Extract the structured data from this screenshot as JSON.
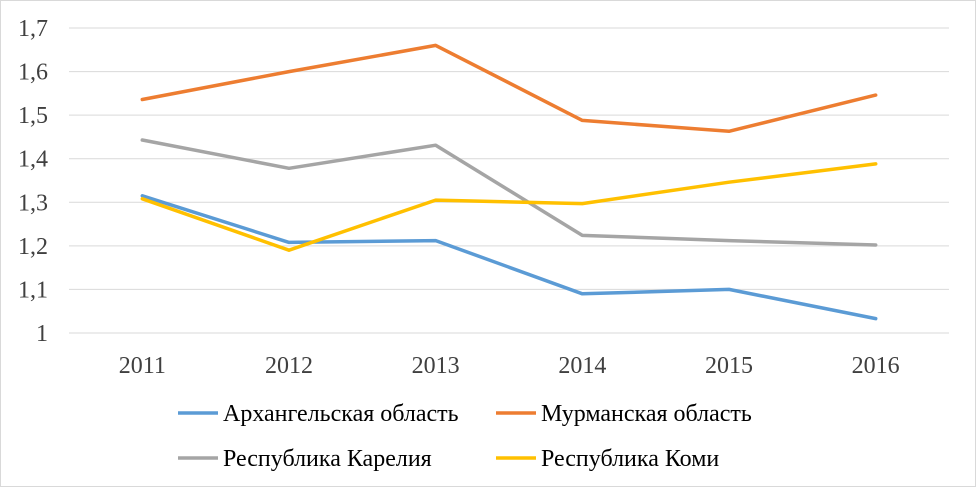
{
  "chart_data": {
    "type": "line",
    "title": "",
    "xlabel": "",
    "ylabel": "",
    "categories": [
      "2011",
      "2012",
      "2013",
      "2014",
      "2015",
      "2016"
    ],
    "ylim": [
      1,
      1.7
    ],
    "yticks": [
      "1",
      "1,1",
      "1,2",
      "1,3",
      "1,4",
      "1,5",
      "1,6",
      "1,7"
    ],
    "grid": "horizontal",
    "legend_position": "bottom",
    "series": [
      {
        "name": "Архангельская область",
        "color": "#5b9bd5",
        "values": [
          1.315,
          1.208,
          1.212,
          1.09,
          1.1,
          1.033
        ]
      },
      {
        "name": "Мурманская область",
        "color": "#ed7d31",
        "values": [
          1.536,
          1.6,
          1.66,
          1.488,
          1.463,
          1.546
        ]
      },
      {
        "name": "Республика Карелия",
        "color": "#a5a5a5",
        "values": [
          1.443,
          1.378,
          1.431,
          1.224,
          1.212,
          1.202
        ]
      },
      {
        "name": "Республика Коми",
        "color": "#ffc000",
        "values": [
          1.308,
          1.19,
          1.305,
          1.297,
          1.346,
          1.388
        ]
      }
    ]
  }
}
